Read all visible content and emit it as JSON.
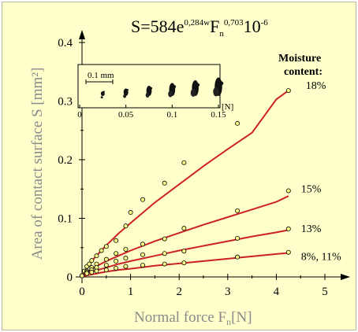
{
  "formula": {
    "lhs": "S=584e",
    "exp1": "0,284w",
    "f": "F",
    "fsub": "n",
    "exp2": "0,703",
    "tail": "10",
    "exp3": "-6"
  },
  "legend_title_line1": "Moisture",
  "legend_title_line2": "content:",
  "colors": {
    "background": "#ffffcc",
    "fit_line": "#cc2222",
    "marker_fill": "#ffff88",
    "axis_title": "#8a8a8a"
  },
  "chart_data": {
    "type": "scatter",
    "xlabel": "Normal force  F",
    "xlabel_sub": "n",
    "xlabel_unit": "[N]",
    "ylabel": "Area of contact surface  S [mm²]",
    "xlim": [
      0,
      5
    ],
    "ylim": [
      0,
      0.4
    ],
    "xticks": [
      "0",
      "1",
      "2",
      "3",
      "4",
      "5"
    ],
    "yticks": [
      "0",
      "0.1",
      "0.2",
      "0.3",
      "0.4"
    ],
    "grid": false,
    "series": [
      {
        "name": "18%",
        "x": [
          0,
          0.05,
          0.1,
          0.15,
          0.2,
          0.3,
          0.4,
          0.5,
          0.7,
          0.9,
          1.0,
          1.25,
          1.7,
          2.1,
          3.2,
          4.25
        ],
        "y": [
          0.002,
          0.01,
          0.018,
          0.022,
          0.028,
          0.036,
          0.045,
          0.052,
          0.062,
          0.087,
          0.11,
          0.132,
          0.16,
          0.195,
          0.262,
          0.318
        ],
        "fit_x": [
          0,
          0.25,
          0.5,
          0.75,
          1,
          1.5,
          2,
          2.5,
          3,
          3.5,
          4,
          4.25
        ],
        "fit_y": [
          0.003,
          0.032,
          0.054,
          0.074,
          0.092,
          0.127,
          0.158,
          0.189,
          0.218,
          0.246,
          0.303,
          0.318
        ]
      },
      {
        "name": "15%",
        "x": [
          0,
          0.1,
          0.2,
          0.3,
          0.5,
          0.7,
          0.9,
          1.25,
          1.7,
          2.1,
          3.2,
          4.25
        ],
        "y": [
          0.002,
          0.01,
          0.016,
          0.022,
          0.03,
          0.04,
          0.047,
          0.056,
          0.065,
          0.083,
          0.113,
          0.147
        ],
        "fit_x": [
          0,
          0.25,
          0.5,
          0.75,
          1,
          1.5,
          2,
          2.5,
          3,
          3.5,
          4,
          4.25
        ],
        "fit_y": [
          0.003,
          0.016,
          0.027,
          0.036,
          0.045,
          0.061,
          0.075,
          0.089,
          0.102,
          0.115,
          0.128,
          0.138
        ]
      },
      {
        "name": "13%",
        "x": [
          0,
          0.1,
          0.2,
          0.3,
          0.5,
          0.7,
          0.9,
          1.25,
          1.7,
          2.1,
          3.2,
          4.25
        ],
        "y": [
          0.002,
          0.008,
          0.012,
          0.016,
          0.02,
          0.027,
          0.032,
          0.038,
          0.04,
          0.044,
          0.066,
          0.082
        ],
        "fit_x": [
          0,
          0.25,
          0.5,
          0.75,
          1,
          1.5,
          2,
          2.5,
          3,
          3.5,
          4,
          4.25
        ],
        "fit_y": [
          0.002,
          0.01,
          0.016,
          0.022,
          0.027,
          0.036,
          0.045,
          0.053,
          0.061,
          0.069,
          0.076,
          0.08
        ]
      },
      {
        "name": "8%, 11%",
        "x": [
          0,
          0.1,
          0.2,
          0.3,
          0.5,
          0.7,
          0.9,
          1.25,
          1.7,
          2.1,
          3.2,
          4.25
        ],
        "y": [
          0.002,
          0.006,
          0.008,
          0.01,
          0.012,
          0.015,
          0.018,
          0.02,
          0.022,
          0.024,
          0.034,
          0.042
        ],
        "fit_x": [
          0,
          0.25,
          0.5,
          0.75,
          1,
          1.5,
          2,
          2.5,
          3,
          3.5,
          4,
          4.25
        ],
        "fit_y": [
          0.001,
          0.005,
          0.009,
          0.012,
          0.014,
          0.019,
          0.023,
          0.027,
          0.031,
          0.035,
          0.039,
          0.041
        ]
      }
    ],
    "inset": {
      "xlabel": "[N]",
      "xlim": [
        0,
        0.15
      ],
      "xticks": [
        "0",
        "0.05",
        "0.1",
        "0.15"
      ],
      "scale_bar_label": "0.1 mm",
      "imprint_positions": [
        0.025,
        0.05,
        0.075,
        0.1,
        0.125,
        0.15
      ]
    }
  }
}
